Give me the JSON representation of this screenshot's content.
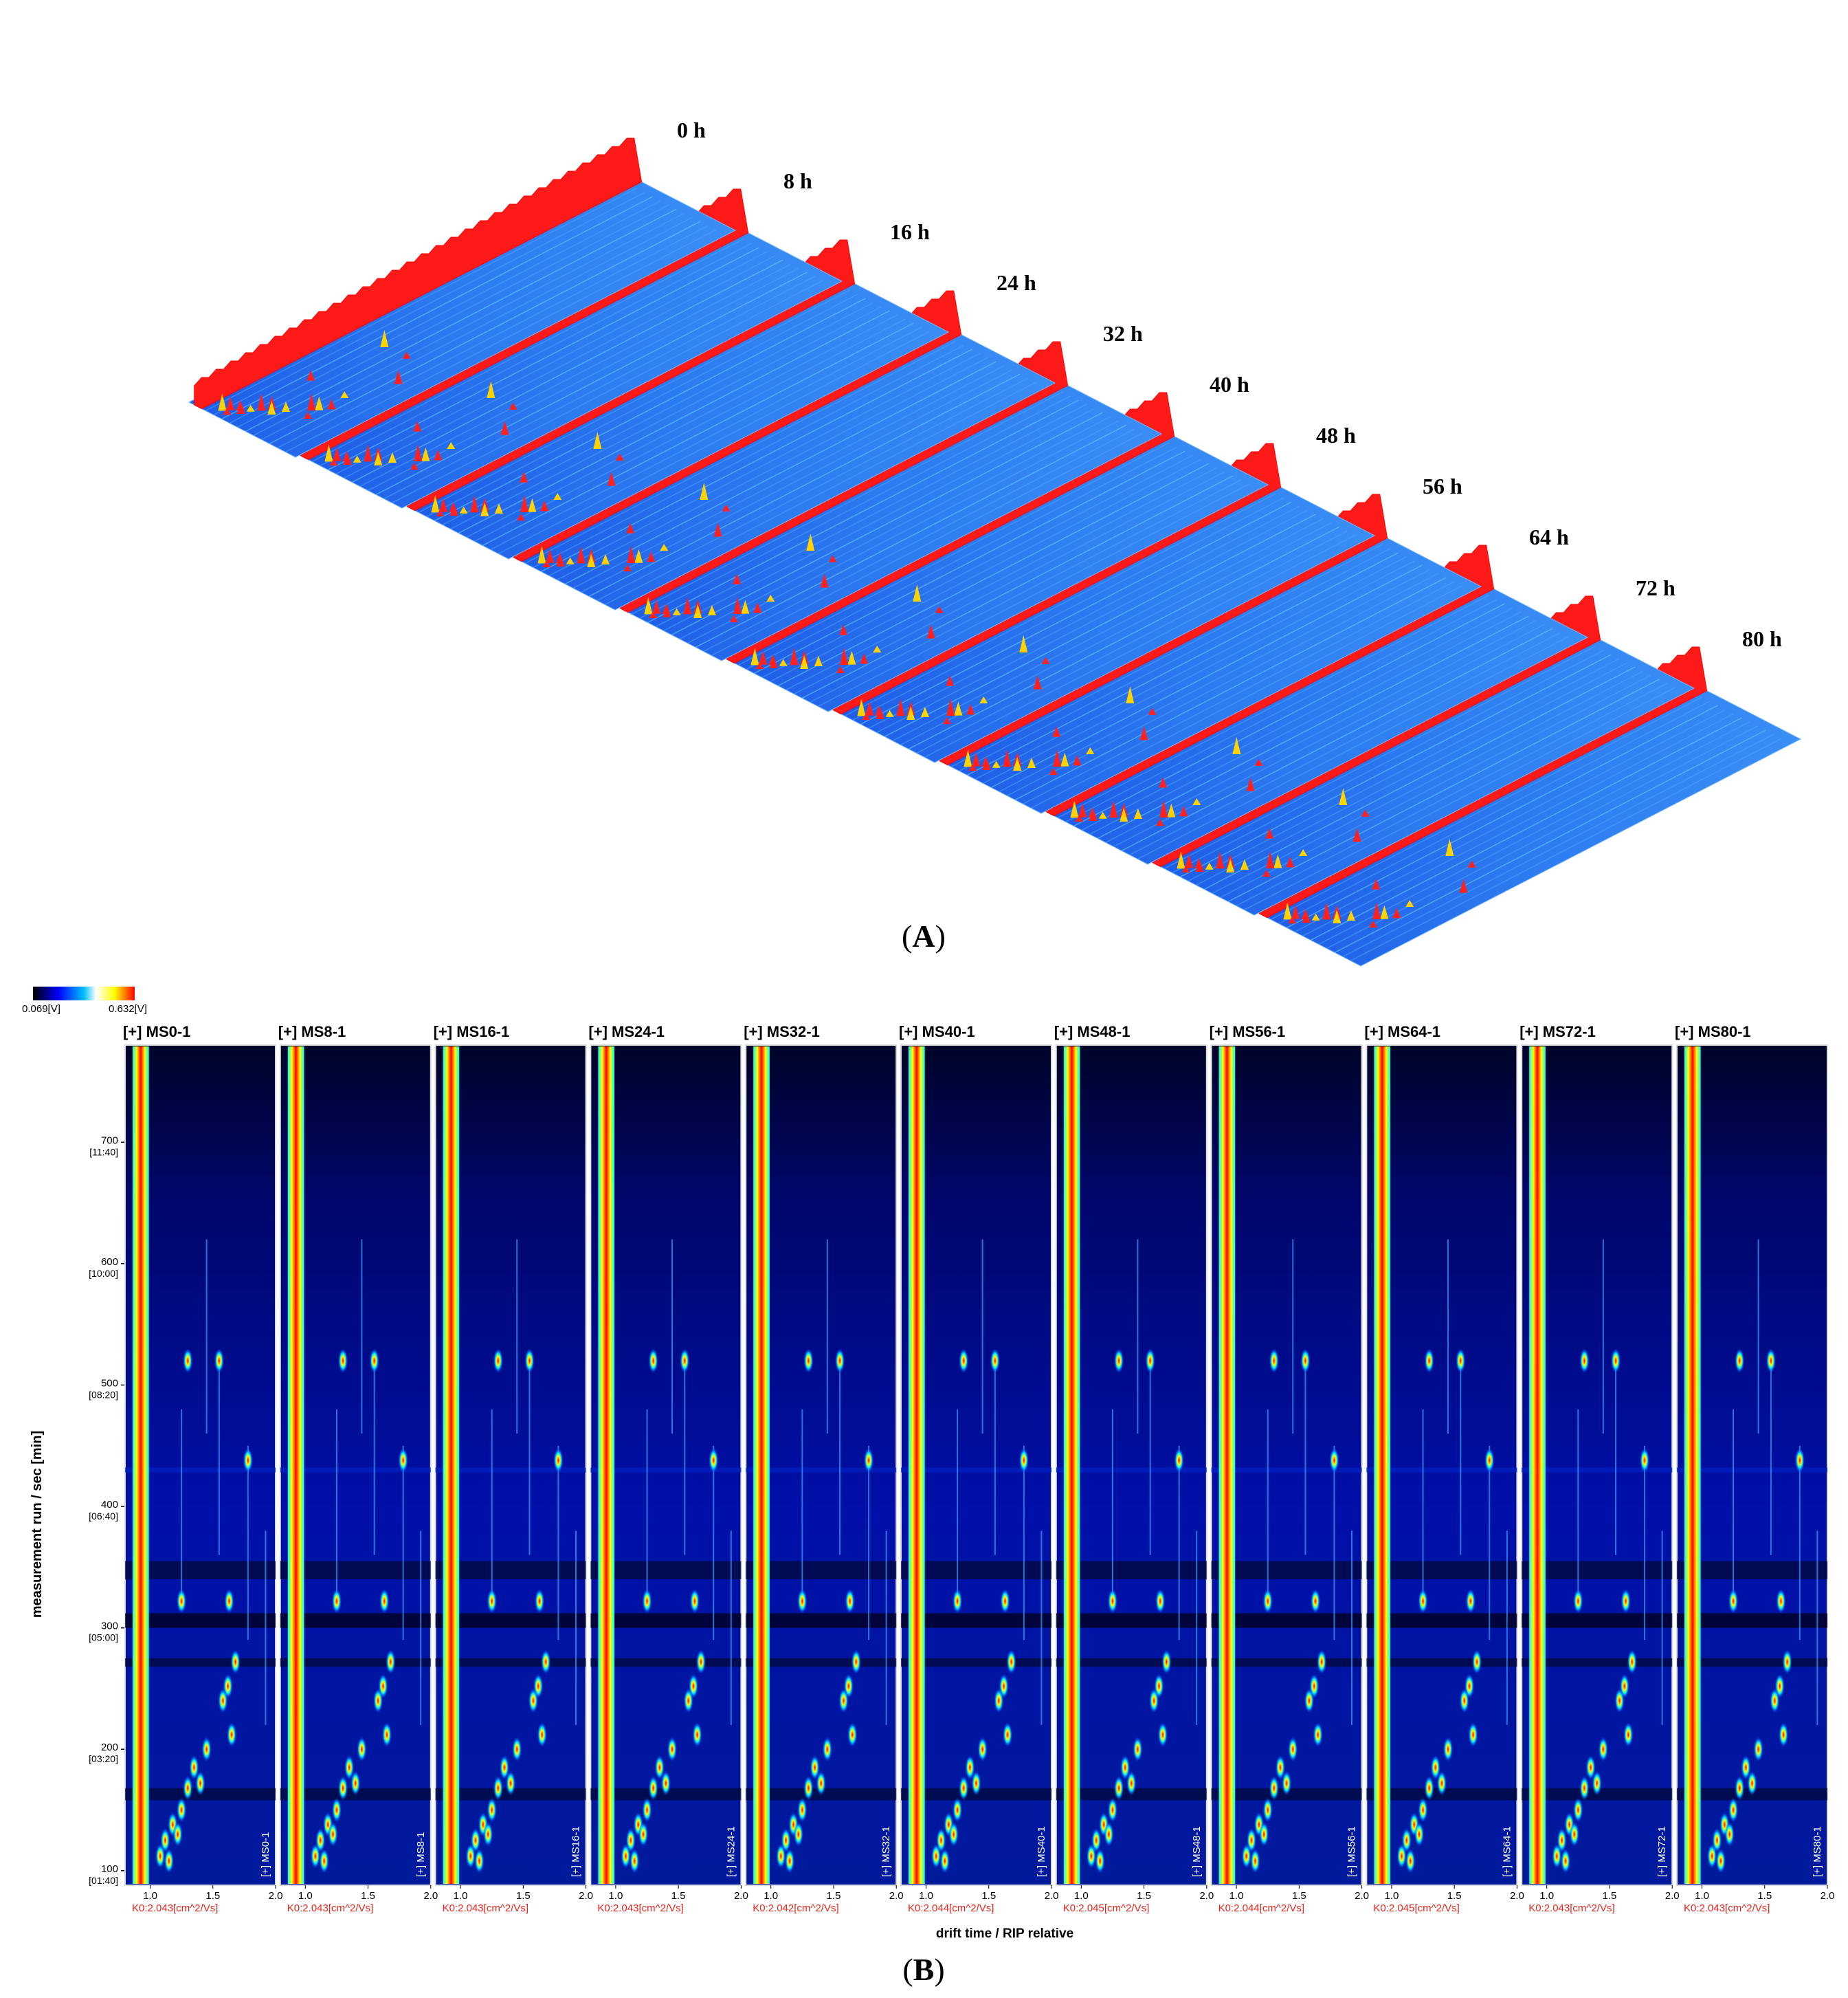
{
  "panel_a": {
    "caption_open": "(",
    "caption_letter": "A",
    "caption_close": ")",
    "timepoint_labels": [
      "0 h",
      "8 h",
      "16 h",
      "24 h",
      "32 h",
      "40 h",
      "48 h",
      "56 h",
      "64 h",
      "72 h",
      "80 h"
    ]
  },
  "panel_b": {
    "caption_open": "(",
    "caption_letter": "B",
    "caption_close": ")",
    "colorbar": {
      "min_label": "0.069[V]",
      "max_label": "0.632[V]",
      "colors": [
        "#000000",
        "#0000ff",
        "#00bfff",
        "#ffffff",
        "#ffff00",
        "#ff0000"
      ]
    }
  },
  "chart_data": [
    {
      "type": "heatmap",
      "title": "",
      "description_kind": "3D topographic GC-IMS spectra",
      "series": [
        {
          "name": "0 h"
        },
        {
          "name": "8 h"
        },
        {
          "name": "16 h"
        },
        {
          "name": "24 h"
        },
        {
          "name": "32 h"
        },
        {
          "name": "40 h"
        },
        {
          "name": "48 h"
        },
        {
          "name": "56 h"
        },
        {
          "name": "64 h"
        },
        {
          "name": "72 h"
        },
        {
          "name": "80 h"
        }
      ]
    },
    {
      "type": "heatmap",
      "xlabel": "drift time / RIP relative",
      "ylabel": "measurement run / sec [min]",
      "xlim": [
        0.8,
        2.0
      ],
      "ylim": [
        88,
        780
      ],
      "x_ticks": [
        "1.0",
        "1.5",
        "2.0"
      ],
      "y_ticks": [
        {
          "value": 100,
          "label": "100",
          "sublabel": "[01:40]"
        },
        {
          "value": 200,
          "label": "200",
          "sublabel": "[03:20]"
        },
        {
          "value": 300,
          "label": "300",
          "sublabel": "[05:00]"
        },
        {
          "value": 400,
          "label": "400",
          "sublabel": "[06:40]"
        },
        {
          "value": 500,
          "label": "500",
          "sublabel": "[08:20]"
        },
        {
          "value": 600,
          "label": "600",
          "sublabel": "[10:00]"
        },
        {
          "value": 700,
          "label": "700",
          "sublabel": "[11:40]"
        }
      ],
      "panels": [
        {
          "title": "[+] MS0-1",
          "side_label": "[+] MS0-1",
          "k0": "K0:2.043[cm^2/Vs]"
        },
        {
          "title": "[+] MS8-1",
          "side_label": "[+] MS8-1",
          "k0": "K0:2.043[cm^2/Vs]"
        },
        {
          "title": "[+] MS16-1",
          "side_label": "[+] MS16-1",
          "k0": "K0:2.043[cm^2/Vs]"
        },
        {
          "title": "[+] MS24-1",
          "side_label": "[+] MS24-1",
          "k0": "K0:2.043[cm^2/Vs]"
        },
        {
          "title": "[+] MS32-1",
          "side_label": "[+] MS32-1",
          "k0": "K0:2.042[cm^2/Vs]"
        },
        {
          "title": "[+] MS40-1",
          "side_label": "[+] MS40-1",
          "k0": "K0:2.044[cm^2/Vs]"
        },
        {
          "title": "[+] MS48-1",
          "side_label": "[+] MS48-1",
          "k0": "K0:2.045[cm^2/Vs]"
        },
        {
          "title": "[+] MS56-1",
          "side_label": "[+] MS56-1",
          "k0": "K0:2.044[cm^2/Vs]"
        },
        {
          "title": "[+] MS64-1",
          "side_label": "[+] MS64-1",
          "k0": "K0:2.045[cm^2/Vs]"
        },
        {
          "title": "[+] MS72-1",
          "side_label": "[+] MS72-1",
          "k0": "K0:2.043[cm^2/Vs]"
        },
        {
          "title": "[+] MS80-1",
          "side_label": "[+] MS80-1",
          "k0": "K0:2.043[cm^2/Vs]"
        }
      ],
      "peaks": [
        {
          "x": 1.63,
          "y": 322
        },
        {
          "x": 1.25,
          "y": 322
        },
        {
          "x": 1.78,
          "y": 438
        },
        {
          "x": 1.3,
          "y": 520
        },
        {
          "x": 1.55,
          "y": 520
        },
        {
          "x": 1.68,
          "y": 272
        },
        {
          "x": 1.62,
          "y": 252
        },
        {
          "x": 1.58,
          "y": 240
        },
        {
          "x": 1.65,
          "y": 212
        },
        {
          "x": 1.45,
          "y": 200
        },
        {
          "x": 1.35,
          "y": 185
        },
        {
          "x": 1.3,
          "y": 168
        },
        {
          "x": 1.25,
          "y": 150
        },
        {
          "x": 1.18,
          "y": 138
        },
        {
          "x": 1.12,
          "y": 125
        },
        {
          "x": 1.08,
          "y": 112
        },
        {
          "x": 1.15,
          "y": 108
        },
        {
          "x": 1.22,
          "y": 130
        },
        {
          "x": 1.4,
          "y": 172
        }
      ]
    }
  ]
}
